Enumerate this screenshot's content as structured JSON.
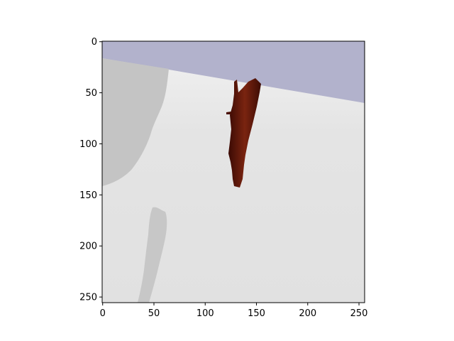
{
  "chart_data": {
    "type": "image",
    "title": "",
    "xlabel": "",
    "ylabel": "",
    "xlim": [
      0,
      255
    ],
    "ylim": [
      255,
      0
    ],
    "x_ticks": [
      0,
      50,
      100,
      150,
      200,
      250
    ],
    "y_ticks": [
      0,
      50,
      100,
      150,
      200,
      250
    ],
    "x_tick_labels": [
      "0",
      "50",
      "100",
      "150",
      "200",
      "250"
    ],
    "y_tick_labels": [
      "0",
      "50",
      "100",
      "150",
      "200",
      "250"
    ],
    "grid": false,
    "image_content": {
      "sky_color": "#b2b2cc",
      "floor_color": "#e2e2e2",
      "shadow_color": "#c4c4c4",
      "object_color": "#5a1408"
    }
  }
}
